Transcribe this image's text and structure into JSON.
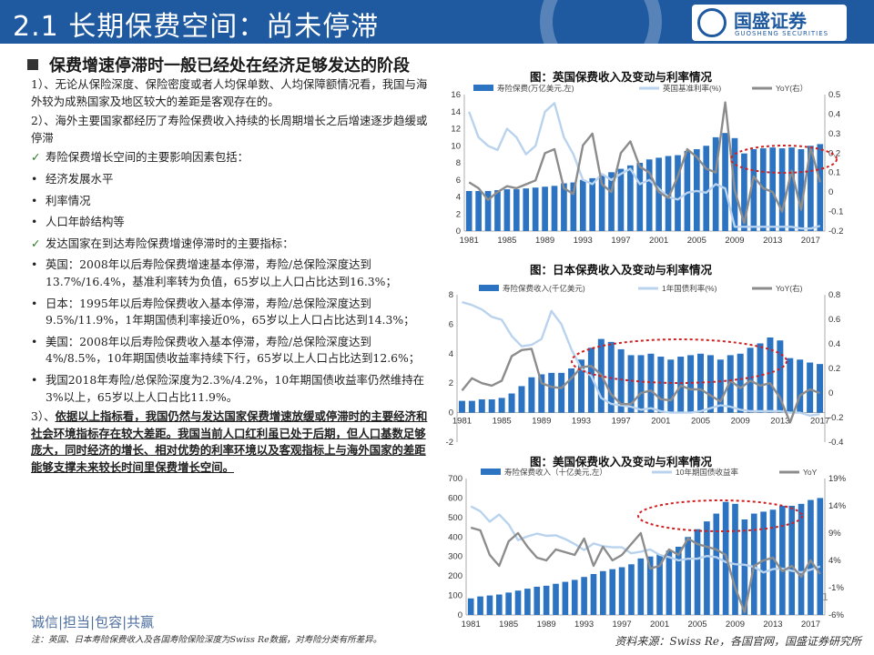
{
  "header": {
    "title": "2.1 长期保费空间：尚未停滞",
    "logo_name": "国盛证券",
    "logo_en": "GUOSHENG SECURITIES"
  },
  "section": {
    "heading": "保费增速停滞时一般已经处在经济足够发达的阶段"
  },
  "body": {
    "p1": "1）、无论从保险深度、保险密度或者人均保单数、人均保障额情况看，我国与海外较为成熟国家及地区较大的差距是客观存在的。",
    "p2": "2）、海外主要国家都经历了寿险保费收入持续的长周期增长之后增速逐步趋缓或停滞",
    "b1": "寿险保费增长空间的主要影响因素包括：",
    "b2": "经济发展水平",
    "b3": "利率情况",
    "b4": "人口年龄结构等",
    "b5": "发达国家在到达寿险保费增速停滞时的主要指标：",
    "b6": "英国：2008年以后寿险保费增速基本停滞，寿险/总保险深度达到13.7%/16.4%，基准利率转为负值，65岁以上人口占比达到16.3%；",
    "b7": "日本：1995年以后寿险保费收入基本停滞，寿险/总保险深度达到9.5%/11.9%，1年期国债利率接近0%，65岁以上人口占比达到14.3%；",
    "b8": "美国：2008年以后寿险保费收入基本停滞，寿险/总保险深度达到4%/8.5%，10年期国债收益率持续下行，65岁以上人口占比达到12.6%；",
    "b9": "我国2018年寿险/总保险深度为2.3%/4.2%，10年期国债收益率仍然维持在3%以上，65岁以上人口占比11.9%。",
    "p3_prefix": "3）、",
    "p3": "依据以上指标看，我国仍然与发达国家保费增速放缓或停滞时的主要经济和社会环境指标存在较大差距。我国当前人口红利虽已处于后期，但人口基数足够庞大，同时经济的增长、相对优势的利率环境以及客观指标上与海外国家的差距能够支撑未来较长时间里保费增长空间。",
    "check": "✓",
    "dot": "•"
  },
  "footer": {
    "motto": "诚信|担当|包容|共赢",
    "note": "注：英国、日本寿险保费收入及各国寿险保险深度为Swiss Re数据，对寿险分类有所差异。",
    "source": "资料来源：Swiss Re，各国官网，国盛证券研究所",
    "page": "1"
  },
  "colors": {
    "header_bg": "#1f5aa0",
    "bar": "#2c74c2",
    "rate_line": "#b9d3ee",
    "yoy_line": "#8c8c8c",
    "highlight": "#d02020"
  },
  "chart_data": [
    {
      "type": "bar",
      "title": "图：英国保费收入及变动与利率情况",
      "legend": [
        "寿险保费(万亿美元,左)",
        "英国基准利率(%)",
        "YoY(右）"
      ],
      "x": [
        1981,
        1982,
        1983,
        1984,
        1985,
        1986,
        1987,
        1988,
        1989,
        1990,
        1991,
        1992,
        1993,
        1994,
        1995,
        1996,
        1997,
        1998,
        1999,
        2000,
        2001,
        2002,
        2003,
        2004,
        2005,
        2006,
        2007,
        2008,
        2009,
        2010,
        2011,
        2012,
        2013,
        2014,
        2015,
        2016,
        2017,
        2018
      ],
      "xticks": [
        "1981",
        "1985",
        "1989",
        "1993",
        "1997",
        "2001",
        "2005",
        "2009",
        "2013",
        "2017"
      ],
      "series": [
        {
          "name": "寿险保费",
          "axis": "left",
          "values": [
            4.7,
            4.7,
            4.7,
            4.8,
            4.9,
            4.9,
            5.0,
            5.1,
            5.2,
            5.3,
            5.6,
            5.7,
            6.0,
            6.2,
            6.5,
            6.9,
            7.3,
            7.7,
            8.0,
            8.4,
            8.6,
            8.8,
            8.9,
            9.4,
            9.6,
            10.0,
            11.0,
            11.5,
            10.9,
            9.1,
            9.6,
            9.7,
            9.8,
            9.7,
            9.8,
            9.6,
            10.0,
            10.2
          ]
        },
        {
          "name": "英国基准利率",
          "axis": "left",
          "values": [
            14.0,
            11.0,
            10.0,
            9.5,
            12.0,
            11.0,
            9.0,
            10.0,
            14.0,
            15.0,
            11.0,
            9.0,
            6.0,
            5.5,
            6.7,
            6.0,
            6.7,
            7.3,
            5.5,
            6.0,
            5.0,
            4.0,
            3.7,
            4.5,
            4.7,
            4.5,
            5.5,
            5.0,
            0.5,
            0.5,
            0.5,
            0.5,
            0.5,
            0.5,
            0.5,
            0.3,
            0.3,
            0.6
          ]
        },
        {
          "name": "YoY",
          "axis": "right",
          "values": [
            0.05,
            0.02,
            -0.04,
            0.0,
            0.03,
            0.02,
            0.04,
            0.06,
            0.2,
            0.22,
            0.02,
            -0.01,
            0.24,
            0.3,
            0.04,
            0.0,
            0.2,
            0.26,
            0.13,
            0.1,
            0.0,
            -0.03,
            0.08,
            0.22,
            0.18,
            0.12,
            0.1,
            0.46,
            0.01,
            -0.16,
            0.08,
            0.02,
            0.0,
            -0.1,
            0.11,
            -0.09,
            0.23,
            0.05
          ]
        }
      ],
      "ylim_left": [
        0,
        16
      ],
      "yticks_left": [
        "0",
        "2",
        "4",
        "6",
        "8",
        "10",
        "12",
        "14",
        "16"
      ],
      "ylim_right": [
        -0.2,
        0.5
      ],
      "yticks_right": [
        "-0.2",
        "-0.1",
        "0",
        "0.1",
        "0.2",
        "0.3",
        "0.4",
        "0.5"
      ]
    },
    {
      "type": "bar",
      "title": "图：日本保费收入及变动与利率情况",
      "legend": [
        "寿险保费收入(千亿美元)",
        "1年国债利率(%)",
        "YoY(右)"
      ],
      "x": [
        1981,
        1982,
        1983,
        1984,
        1985,
        1986,
        1987,
        1988,
        1989,
        1990,
        1991,
        1992,
        1993,
        1994,
        1995,
        1996,
        1997,
        1998,
        1999,
        2000,
        2001,
        2002,
        2003,
        2004,
        2005,
        2006,
        2007,
        2008,
        2009,
        2010,
        2011,
        2012,
        2013,
        2014,
        2015,
        2016,
        2017
      ],
      "xticks": [
        "1981",
        "1985",
        "1989",
        "1993",
        "1997",
        "2001",
        "2005",
        "2009",
        "2013",
        "2017"
      ],
      "series": [
        {
          "name": "寿险保费收入",
          "axis": "left",
          "values": [
            0.8,
            0.8,
            0.9,
            0.9,
            1.0,
            1.3,
            1.8,
            2.4,
            2.6,
            2.7,
            2.7,
            3.0,
            3.6,
            4.4,
            5.0,
            4.8,
            4.3,
            3.9,
            3.9,
            4.0,
            3.8,
            3.6,
            3.8,
            3.9,
            4.0,
            3.9,
            3.6,
            3.9,
            4.0,
            4.4,
            4.7,
            5.1,
            4.9,
            3.7,
            3.6,
            3.4,
            3.3
          ]
        },
        {
          "name": "1年国债利率",
          "axis": "left",
          "values": [
            7.5,
            7.3,
            7.0,
            6.5,
            6.3,
            5.2,
            4.5,
            4.6,
            5.0,
            6.9,
            6.0,
            4.3,
            3.0,
            2.5,
            1.0,
            0.6,
            0.5,
            0.4,
            0.2,
            0.3,
            0.1,
            0.0,
            0.0,
            0.0,
            0.1,
            0.3,
            0.5,
            0.4,
            0.2,
            0.1,
            0.1,
            0.1,
            0.1,
            0.0,
            0.0,
            -0.2,
            -0.1
          ]
        },
        {
          "name": "YoY",
          "axis": "right",
          "values": [
            0.02,
            0.12,
            0.08,
            0.06,
            0.1,
            0.3,
            0.35,
            0.36,
            0.08,
            0.05,
            0.04,
            0.12,
            0.21,
            0.22,
            0.15,
            -0.01,
            -0.09,
            -0.09,
            0.0,
            0.02,
            -0.05,
            -0.06,
            0.06,
            0.03,
            0.03,
            -0.02,
            -0.07,
            0.1,
            0.04,
            0.1,
            0.06,
            0.08,
            -0.04,
            -0.24,
            -0.02,
            0.03,
            0.0
          ]
        }
      ],
      "ylim_left": [
        -2,
        8
      ],
      "yticks_left": [
        "-2",
        "0",
        "2",
        "4",
        "6",
        "8"
      ],
      "ylim_right": [
        -0.4,
        0.8
      ],
      "yticks_right": [
        "-0.4",
        "-0.2",
        "0",
        "0.2",
        "0.4",
        "0.6",
        "0.8"
      ]
    },
    {
      "type": "bar",
      "title": "图：美国保费收入及变动与利率情况",
      "legend": [
        "寿险保费收入（十亿美元,左）",
        "10年期国债收益率",
        "YoY"
      ],
      "x": [
        1981,
        1982,
        1983,
        1984,
        1985,
        1986,
        1987,
        1988,
        1989,
        1990,
        1991,
        1992,
        1993,
        1994,
        1995,
        1996,
        1997,
        1998,
        1999,
        2000,
        2001,
        2002,
        2003,
        2004,
        2005,
        2006,
        2007,
        2008,
        2009,
        2010,
        2011,
        2012,
        2013,
        2014,
        2015,
        2016,
        2017,
        2018
      ],
      "xticks": [
        "1981",
        "1985",
        "1989",
        "1993",
        "1997",
        "2001",
        "2005",
        "2009",
        "2013",
        "2017"
      ],
      "series": [
        {
          "name": "寿险保费收入",
          "axis": "left",
          "values": [
            85,
            95,
            100,
            105,
            115,
            125,
            135,
            145,
            150,
            160,
            170,
            180,
            195,
            210,
            225,
            235,
            245,
            260,
            290,
            300,
            310,
            330,
            350,
            400,
            440,
            480,
            520,
            580,
            570,
            490,
            520,
            530,
            540,
            560,
            560,
            570,
            590,
            600
          ]
        },
        {
          "name": "10年期国债收益率",
          "axis": "right",
          "values": [
            13.9,
            13.0,
            11.1,
            12.4,
            10.6,
            7.7,
            8.4,
            8.9,
            8.5,
            8.6,
            7.9,
            7.0,
            5.9,
            7.1,
            6.6,
            6.4,
            6.4,
            5.3,
            5.6,
            6.0,
            5.0,
            4.6,
            4.0,
            4.3,
            4.3,
            4.8,
            4.6,
            3.7,
            3.3,
            3.2,
            2.8,
            1.8,
            2.4,
            2.5,
            2.1,
            1.8,
            2.3,
            2.9
          ]
        },
        {
          "name": "YoY",
          "axis": "right",
          "values": [
            10.0,
            9.5,
            5.0,
            3.0,
            7.5,
            9.0,
            6.5,
            4.5,
            4.0,
            6.0,
            5.5,
            5.0,
            8.0,
            3.0,
            6.5,
            4.0,
            5.0,
            7.0,
            9.0,
            2.5,
            3.0,
            6.0,
            5.0,
            8.0,
            7.0,
            6.5,
            6.0,
            5.0,
            -1.0,
            -5.5,
            3.0,
            4.0,
            4.5,
            2.0,
            3.0,
            1.0,
            4.0,
            1.5
          ]
        }
      ],
      "ylim_left": [
        0,
        700
      ],
      "yticks_left": [
        "0",
        "100",
        "200",
        "300",
        "400",
        "500",
        "600",
        "700"
      ],
      "ylim_right": [
        -6,
        19
      ],
      "yticks_right": [
        "-6%",
        "-1%",
        "4%",
        "9%",
        "14%",
        "19%"
      ]
    }
  ]
}
